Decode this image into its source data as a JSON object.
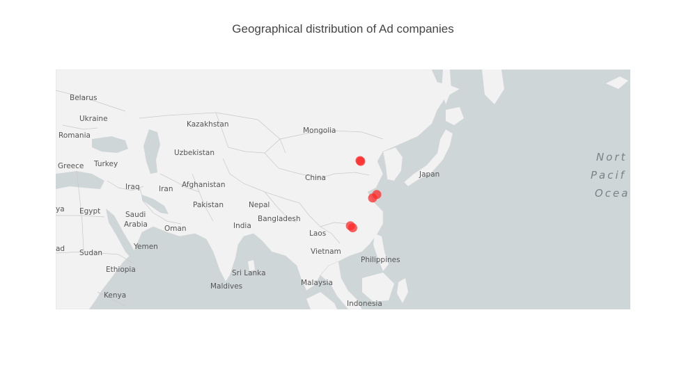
{
  "title": "Geographical distribution of Ad companies",
  "colors": {
    "ocean": "#cfd6d8",
    "land": "#f2f2f2",
    "border": "#c8c8c8",
    "marker": "#ff2a2a"
  },
  "map": {
    "style": "light",
    "country_labels": [
      "Belarus",
      "Ukraine",
      "Romania",
      "Kazakhstan",
      "Mongolia",
      "Uzbekistan",
      "Greece",
      "Turkey",
      "China",
      "Japan",
      "Iraq",
      "Iran",
      "Afghanistan",
      "Pakistan",
      "Nepal",
      "ya",
      "Egypt",
      "Saudi",
      "Arabia",
      "Bangladesh",
      "India",
      "Oman",
      "Laos",
      "ad",
      "Yemen",
      "Sudan",
      "Vietnam",
      "Philippines",
      "Ethiopia",
      "Sri Lanka",
      "Maldives",
      "Malaysia",
      "Kenya",
      "Indonesia"
    ],
    "ocean_labels": [
      "Nort",
      "Pacif",
      "Ocea"
    ]
  },
  "chart_data": {
    "type": "scatter",
    "title": "Geographical distribution of Ad companies",
    "markers": [
      {
        "lat": 40.0,
        "lon": 116.3
      },
      {
        "lat": 39.8,
        "lon": 116.5
      },
      {
        "lat": 31.2,
        "lon": 121.5
      },
      {
        "lat": 30.3,
        "lon": 120.2
      },
      {
        "lat": 22.6,
        "lon": 114.0
      },
      {
        "lat": 23.1,
        "lon": 113.3
      }
    ]
  }
}
